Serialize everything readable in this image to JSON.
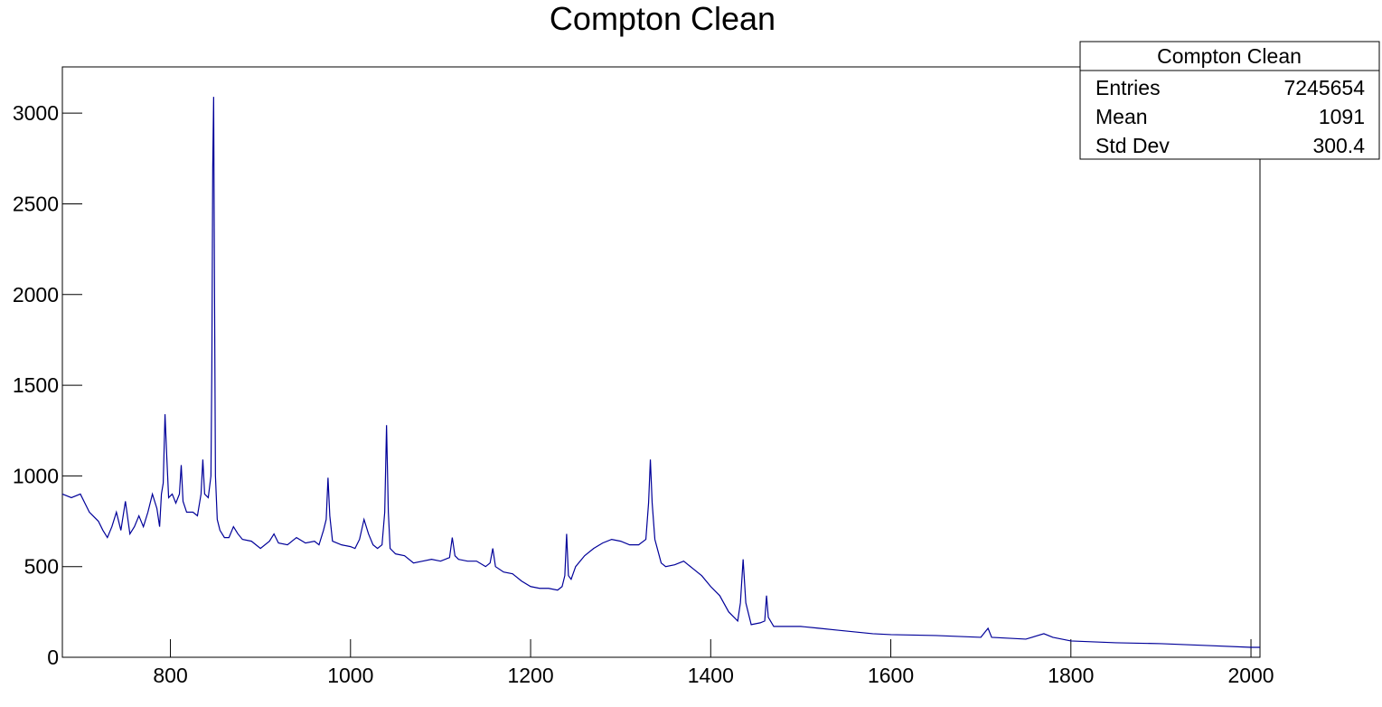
{
  "chart_data": {
    "type": "line",
    "title": "Compton Clean",
    "x": [
      680,
      690,
      700,
      705,
      710,
      720,
      725,
      730,
      735,
      740,
      745,
      750,
      755,
      760,
      765,
      770,
      775,
      780,
      785,
      788,
      790,
      792,
      794,
      796,
      798,
      802,
      806,
      810,
      812,
      814,
      818,
      825,
      830,
      834,
      836,
      838,
      842,
      845,
      846,
      847,
      848,
      849,
      850,
      852,
      855,
      860,
      865,
      870,
      875,
      880,
      890,
      900,
      910,
      915,
      920,
      930,
      940,
      950,
      960,
      965,
      970,
      973,
      975,
      977,
      980,
      990,
      1000,
      1005,
      1010,
      1015,
      1020,
      1025,
      1030,
      1035,
      1038,
      1040,
      1042,
      1044,
      1050,
      1060,
      1070,
      1080,
      1090,
      1100,
      1110,
      1113,
      1116,
      1120,
      1130,
      1140,
      1150,
      1155,
      1158,
      1161,
      1170,
      1180,
      1190,
      1200,
      1210,
      1220,
      1230,
      1235,
      1238,
      1240,
      1242,
      1245,
      1250,
      1260,
      1270,
      1280,
      1290,
      1300,
      1310,
      1320,
      1328,
      1331,
      1333,
      1335,
      1338,
      1345,
      1350,
      1360,
      1370,
      1380,
      1390,
      1400,
      1410,
      1420,
      1430,
      1433,
      1436,
      1439,
      1445,
      1455,
      1460,
      1462,
      1464,
      1470,
      1480,
      1500,
      1520,
      1540,
      1560,
      1580,
      1600,
      1650,
      1700,
      1708,
      1712,
      1750,
      1770,
      1780,
      1800,
      1850,
      1900,
      1950,
      2000,
      2010
    ],
    "series": [
      {
        "name": "Compton Clean",
        "color": "#000099",
        "values": [
          900,
          880,
          900,
          850,
          800,
          750,
          700,
          660,
          720,
          800,
          700,
          860,
          680,
          720,
          780,
          720,
          800,
          900,
          820,
          720,
          900,
          960,
          1340,
          1100,
          880,
          900,
          850,
          900,
          1060,
          860,
          800,
          800,
          780,
          900,
          1090,
          900,
          880,
          1000,
          1600,
          2700,
          3090,
          2000,
          1000,
          760,
          700,
          660,
          660,
          720,
          680,
          650,
          640,
          600,
          640,
          680,
          630,
          620,
          660,
          630,
          640,
          620,
          700,
          760,
          990,
          780,
          640,
          620,
          610,
          600,
          650,
          760,
          680,
          620,
          600,
          620,
          800,
          1280,
          800,
          600,
          570,
          560,
          520,
          530,
          540,
          530,
          550,
          660,
          560,
          540,
          530,
          530,
          500,
          520,
          600,
          500,
          470,
          460,
          420,
          390,
          380,
          380,
          370,
          390,
          450,
          680,
          450,
          430,
          500,
          560,
          600,
          630,
          650,
          640,
          620,
          620,
          650,
          850,
          1090,
          850,
          650,
          520,
          500,
          510,
          530,
          490,
          450,
          390,
          340,
          250,
          200,
          300,
          540,
          300,
          180,
          190,
          200,
          340,
          220,
          170,
          170,
          170,
          160,
          150,
          140,
          130,
          125,
          120,
          110,
          160,
          110,
          100,
          130,
          110,
          90,
          80,
          75,
          65,
          55,
          55
        ]
      }
    ],
    "xlim": [
      680,
      2010
    ],
    "ylim": [
      0,
      3255
    ],
    "xticks": [
      800,
      1000,
      1200,
      1400,
      1600,
      1800,
      2000
    ],
    "yticks": [
      0,
      500,
      1000,
      1500,
      2000,
      2500,
      3000
    ],
    "stats": {
      "title": "Compton Clean",
      "rows": [
        [
          "Entries",
          7245654
        ],
        [
          "Mean",
          1091
        ],
        [
          "Std Dev",
          300.4
        ]
      ]
    }
  }
}
